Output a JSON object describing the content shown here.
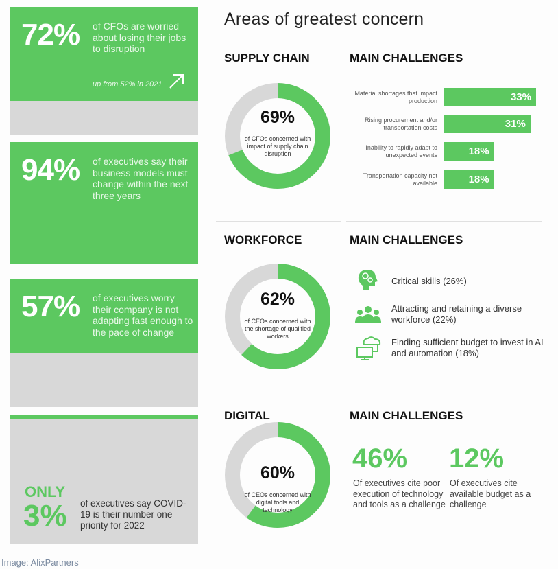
{
  "stats": [
    {
      "pct": "72%",
      "text": "of CFOs are worried about losing their jobs to disruption",
      "sub": "up from 52% in 2021"
    },
    {
      "pct": "94%",
      "text": "of executives say their business models must change within the next three years"
    },
    {
      "pct": "57%",
      "text": "of executives worry their company is not adapting fast enough to the pace of change"
    },
    {
      "prefix": "ONLY",
      "pct": "3%",
      "text": "of executives say COVID-19 is their number one priority for 2022"
    }
  ],
  "title": "Areas of greatest concern",
  "sections": {
    "supply": {
      "heading": "SUPPLY CHAIN",
      "challenges_heading": "MAIN CHALLENGES"
    },
    "workforce": {
      "heading": "WORKFORCE",
      "challenges_heading": "MAIN CHALLENGES"
    },
    "digital": {
      "heading": "DIGITAL",
      "challenges_heading": "MAIN CHALLENGES"
    }
  },
  "chart_data": [
    {
      "type": "pie",
      "name": "supply-chain-donut",
      "values": [
        69,
        31
      ],
      "label": "69%",
      "text": "of CFOs concerned with impact of supply chain disruption"
    },
    {
      "type": "pie",
      "name": "workforce-donut",
      "values": [
        62,
        38
      ],
      "label": "62%",
      "text": "of CEOs concerned with the shortage of qualified workers"
    },
    {
      "type": "pie",
      "name": "digital-donut",
      "values": [
        60,
        40
      ],
      "label": "60%",
      "text": "of CEOs concerned with digital tools and technology"
    },
    {
      "type": "bar",
      "name": "supply-challenges",
      "orientation": "horizontal",
      "categories": [
        "Material shortages that impact production",
        "Rising procurement and/or transportation costs",
        "Inability to rapidly adapt to unexpected events",
        "Transportation capacity not available"
      ],
      "values": [
        33,
        31,
        18,
        18
      ],
      "labels": [
        "33%",
        "31%",
        "18%",
        "18%"
      ]
    }
  ],
  "workforce_challenges": [
    {
      "icon": "head-gears-icon",
      "text": "Critical skills (26%)"
    },
    {
      "icon": "people-group-icon",
      "text": "Attracting and retaining a diverse workforce (22%)"
    },
    {
      "icon": "cloud-computer-icon",
      "text": "Finding sufficient budget to invest in AI and automation (18%)"
    }
  ],
  "digital_challenges": [
    {
      "pct": "46%",
      "text": "Of executives cite poor execution of technology and tools as a challenge"
    },
    {
      "pct": "12%",
      "text": "Of executives cite available budget as a challenge"
    }
  ],
  "caption": "Image: AlixPartners",
  "colors": {
    "accent": "#5cc860",
    "grey": "#d8d8d8"
  }
}
